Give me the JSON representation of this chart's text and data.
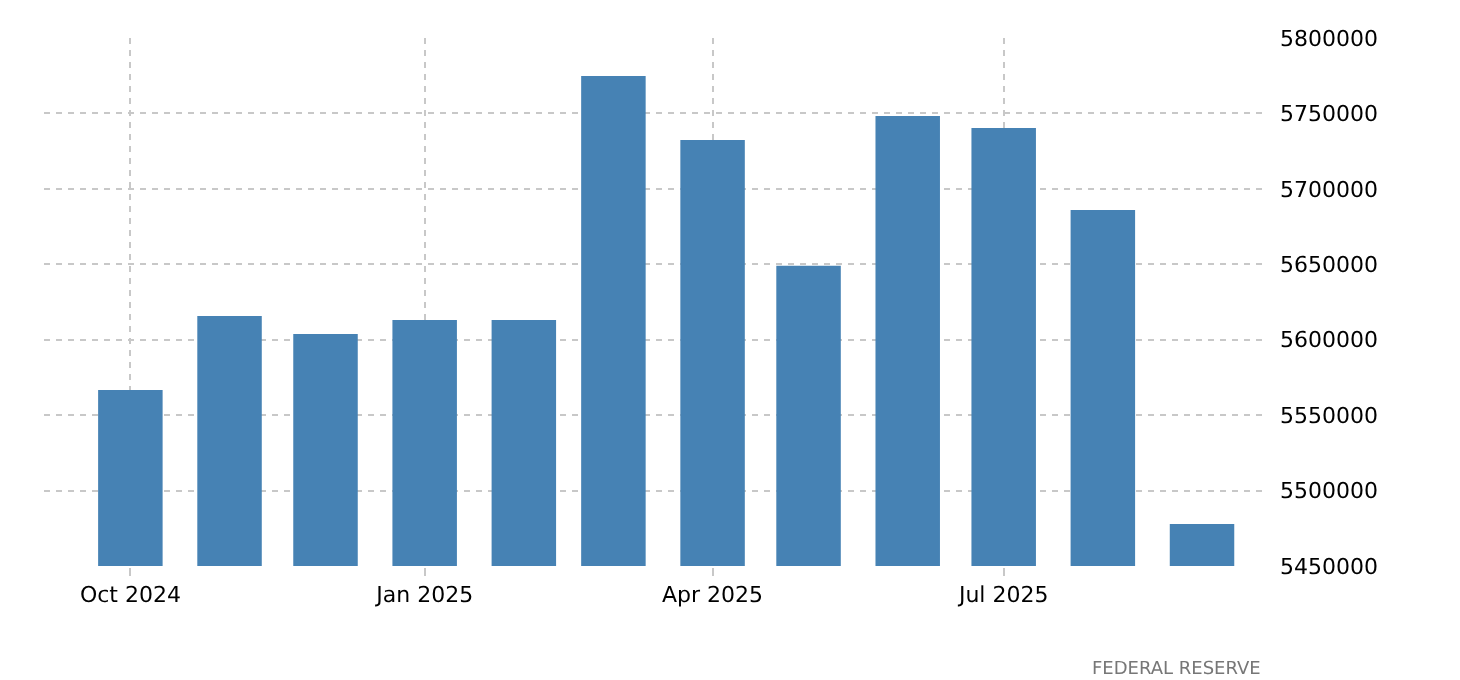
{
  "chart_data": {
    "type": "bar",
    "x": [
      "2024-10",
      "2024-11",
      "2024-12",
      "2025-01",
      "2025-02",
      "2025-03",
      "2025-04",
      "2025-05",
      "2025-06",
      "2025-07",
      "2025-08",
      "2025-09"
    ],
    "values": [
      5566700,
      5615700,
      5603800,
      5613000,
      5613000,
      5774800,
      5732400,
      5649000,
      5748300,
      5740300,
      5686000,
      5477800
    ],
    "color": "#4682b4",
    "xlim": [
      "2024-09-04",
      "2025-09-21"
    ],
    "xticks": [
      {
        "value": "2024-10",
        "label": "Oct 2024"
      },
      {
        "value": "2025-01",
        "label": "Jan 2025"
      },
      {
        "value": "2025-04",
        "label": "Apr 2025"
      },
      {
        "value": "2025-07",
        "label": "Jul 2025"
      }
    ],
    "ylim": [
      5450000,
      5800000
    ],
    "yticks": [
      5450000,
      5500000,
      5550000,
      5600000,
      5650000,
      5700000,
      5750000,
      5800000
    ],
    "grid": true,
    "annotations": [
      "FEDERAL RESERVE"
    ]
  }
}
